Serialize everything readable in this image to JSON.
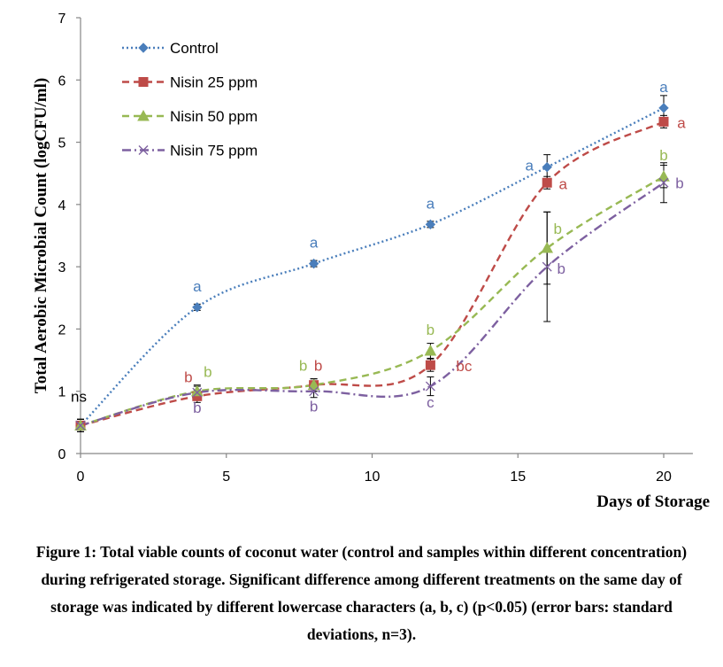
{
  "chart_data": {
    "type": "line",
    "title": "",
    "xlabel": "Days of Storage",
    "ylabel": "Total Aerobic Microbial Count (logCFU/ml)",
    "xlim": [
      0,
      21
    ],
    "ylim": [
      0,
      7
    ],
    "xticks": [
      "0",
      "5",
      "10",
      "15",
      "20"
    ],
    "yticks": [
      "0",
      "1",
      "2",
      "3",
      "4",
      "5",
      "6",
      "7"
    ],
    "x": [
      0,
      4,
      8,
      12,
      16,
      20
    ],
    "legend_position": "top-left",
    "grid": false,
    "series": [
      {
        "name": "Control",
        "color": "#4a7ebb",
        "marker": "diamond",
        "line_style": "dotted",
        "values": [
          0.45,
          2.35,
          3.05,
          3.68,
          4.6,
          5.55
        ],
        "errors": [
          0.1,
          0.05,
          0.05,
          0.05,
          0.2,
          0.2
        ],
        "labels": [
          "ns",
          "a",
          "a",
          "a",
          "a",
          "a"
        ]
      },
      {
        "name": "Nisin  25 ppm",
        "color": "#be4b48",
        "marker": "square",
        "line_style": "dashed",
        "values": [
          0.45,
          0.92,
          1.1,
          1.42,
          4.35,
          5.33
        ],
        "errors": [
          0.1,
          0.1,
          0.1,
          0.1,
          0.1,
          0.1
        ],
        "labels": [
          "",
          "b",
          "b",
          "bc",
          "a",
          "a"
        ]
      },
      {
        "name": "Nisin 50 ppm",
        "color": "#98b954",
        "marker": "triangle",
        "line_style": "dashed",
        "values": [
          0.45,
          1.0,
          1.1,
          1.65,
          3.3,
          4.45
        ],
        "errors": [
          0.1,
          0.1,
          0.1,
          0.12,
          0.58,
          0.18
        ],
        "labels": [
          "",
          "b",
          "b",
          "b",
          "b",
          "b"
        ]
      },
      {
        "name": "Nisin 75 ppm",
        "color": "#7d60a0",
        "marker": "x",
        "line_style": "dashdot",
        "values": [
          0.45,
          0.98,
          1.0,
          1.08,
          3.0,
          4.35
        ],
        "errors": [
          0.1,
          0.1,
          0.1,
          0.15,
          0.88,
          0.32
        ],
        "labels": [
          "",
          "b",
          "b",
          "c",
          "b",
          "b"
        ]
      }
    ]
  },
  "caption": "Figure 1: Total viable counts of coconut water (control and samples within different concentration) during refrigerated storage. Significant difference among different treatments on the same day of storage was indicated by different lowercase characters (a, b, c) (p<0.05) (error bars: standard deviations, n=3)."
}
